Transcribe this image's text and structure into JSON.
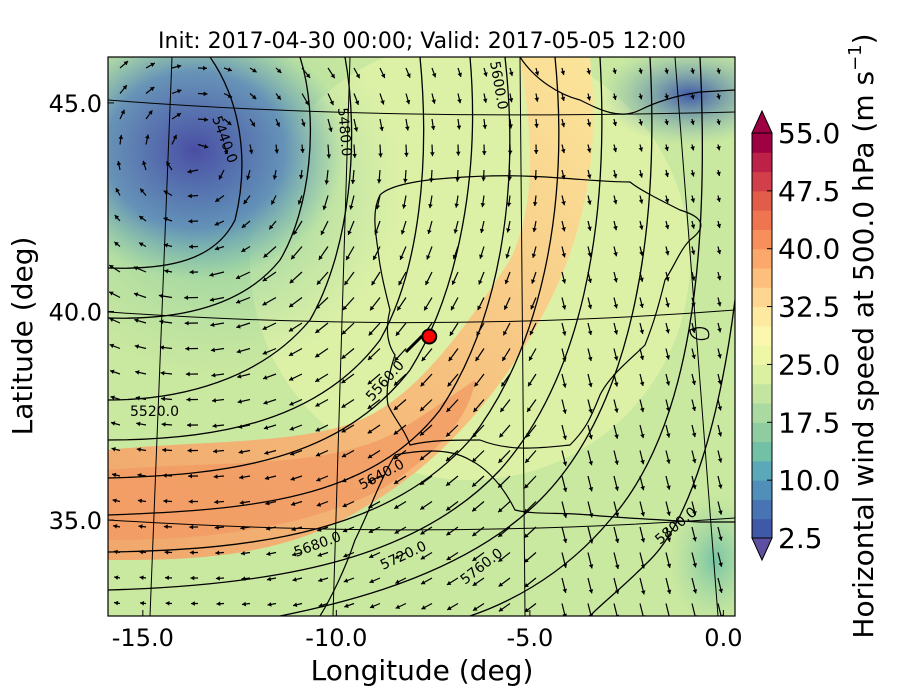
{
  "chart_data": {
    "type": "heatmap",
    "title": "Init: 2017-04-30 00:00; Valid: 2017-05-05 12:00",
    "xlabel": "Longitude (deg)",
    "ylabel": "Latitude (deg)",
    "xlim": [
      -15.9,
      0.3
    ],
    "ylim": [
      32.7,
      46.1
    ],
    "xticks": [
      -15.0,
      -10.0,
      -5.0,
      0.0
    ],
    "xtick_labels": [
      "-15.0",
      "-10.0",
      "-5.0",
      "0.0"
    ],
    "yticks": [
      35.0,
      40.0,
      45.0
    ],
    "ytick_labels": [
      "35.0",
      "40.0",
      "45.0"
    ],
    "colorbar": {
      "label": "Horizontal wind speed at 500.0 hPa (m s",
      "label_sup": "−1",
      "label_end": ")",
      "levels": [
        2.5,
        5,
        7.5,
        10,
        12.5,
        15,
        17.5,
        20,
        22.5,
        25,
        27.5,
        30,
        32.5,
        35,
        37.5,
        40,
        42.5,
        45,
        47.5,
        50,
        52.5,
        55
      ],
      "colors": [
        "#3f58a8",
        "#4974b3",
        "#4f8fba",
        "#5ba9b8",
        "#72c1a6",
        "#8fcda1",
        "#aadaa1",
        "#c4e59f",
        "#dbf0a0",
        "#edf7a6",
        "#fbf7af",
        "#fde9a0",
        "#fed690",
        "#fdc07c",
        "#fba86a",
        "#f68f59",
        "#ee7550",
        "#e25c4a",
        "#d03f4a",
        "#bd2148",
        "#9e0142"
      ],
      "ticks": [
        2.5,
        10.0,
        17.5,
        25.0,
        32.5,
        40.0,
        47.5,
        55.0
      ],
      "tick_labels": [
        "2.5",
        "10.0",
        "17.5",
        "25.0",
        "32.5",
        "40.0",
        "47.5",
        "55.0"
      ]
    },
    "contour_labels": [
      "5440.0",
      "5480.0",
      "5600.0",
      "5520.0",
      "5560.0",
      "5640.0",
      "5680.0",
      "5720.0",
      "5760.0",
      "5800.0"
    ],
    "marker": {
      "lon": -7.6,
      "lat": 39.4,
      "color": "#ff0000"
    },
    "grid": true
  }
}
